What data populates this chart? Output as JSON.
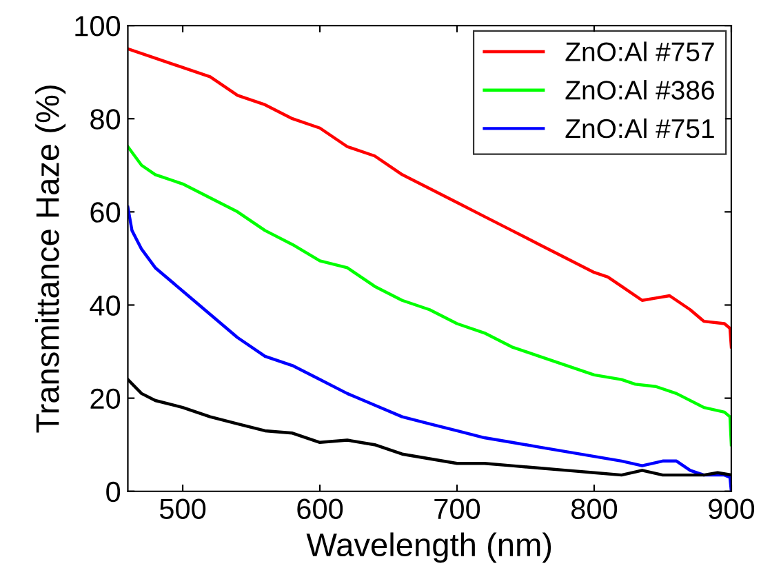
{
  "chart_data": {
    "type": "line",
    "xlabel": "Wavelength (nm)",
    "ylabel": "Transmittance Haze (%)",
    "xlim": [
      460,
      900
    ],
    "ylim": [
      0,
      100
    ],
    "xticks": [
      500,
      600,
      700,
      800,
      900
    ],
    "yticks": [
      0,
      20,
      40,
      60,
      80,
      100
    ],
    "grid": false,
    "legend": "top right",
    "marker": "none",
    "line_style": "solid",
    "series": [
      {
        "name": "ZnO:Al #757",
        "color": "#ff0000",
        "x": [
          460,
          480,
          500,
          520,
          540,
          560,
          580,
          600,
          620,
          640,
          660,
          680,
          700,
          720,
          740,
          760,
          780,
          800,
          810,
          820,
          835,
          845,
          855,
          870,
          880,
          895,
          899,
          900
        ],
        "values": [
          95,
          93,
          91,
          89,
          85,
          83,
          80,
          78,
          74,
          72,
          68,
          65,
          62,
          59,
          56,
          53,
          50,
          47,
          46,
          44,
          41,
          41.5,
          42,
          39,
          36.5,
          36,
          35,
          31
        ]
      },
      {
        "name": "ZnO:Al #386",
        "color": "#00ff00",
        "x": [
          460,
          470,
          480,
          500,
          520,
          540,
          560,
          580,
          600,
          620,
          640,
          660,
          680,
          700,
          720,
          740,
          760,
          780,
          800,
          820,
          830,
          845,
          860,
          880,
          895,
          899,
          900
        ],
        "values": [
          74,
          70,
          68,
          66,
          63,
          60,
          56,
          53,
          49.5,
          48,
          44,
          41,
          39,
          36,
          34,
          31,
          29,
          27,
          25,
          24,
          23,
          22.5,
          21,
          18,
          17,
          16,
          10
        ]
      },
      {
        "name": "ZnO:Al #751",
        "color": "#0000ff",
        "x": [
          460,
          463,
          470,
          480,
          500,
          520,
          540,
          560,
          580,
          600,
          620,
          640,
          660,
          680,
          700,
          720,
          740,
          760,
          780,
          800,
          820,
          835,
          850,
          860,
          870,
          880,
          895,
          899,
          900
        ],
        "values": [
          61,
          56,
          52,
          48,
          43,
          38,
          33,
          29,
          27,
          24,
          21,
          18.5,
          16,
          14.5,
          13,
          11.5,
          10.5,
          9.5,
          8.5,
          7.5,
          6.5,
          5.5,
          6.5,
          6.5,
          4.5,
          3.5,
          3.5,
          3,
          0
        ]
      },
      {
        "color": "#000000",
        "x": [
          460,
          470,
          480,
          500,
          520,
          540,
          560,
          580,
          600,
          620,
          640,
          660,
          680,
          700,
          720,
          740,
          760,
          780,
          800,
          820,
          835,
          850,
          860,
          880,
          890,
          900
        ],
        "values": [
          24,
          21,
          19.5,
          18,
          16,
          14.5,
          13,
          12.5,
          10.5,
          11,
          10,
          8,
          7,
          6,
          6,
          5.5,
          5,
          4.5,
          4,
          3.5,
          4.5,
          3.5,
          3.5,
          3.5,
          4,
          3.5
        ]
      }
    ]
  }
}
